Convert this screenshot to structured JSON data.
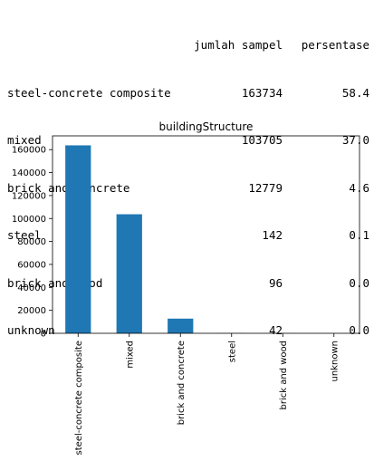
{
  "table": {
    "headers": [
      "",
      "jumlah sampel",
      "persentase"
    ],
    "rows": [
      {
        "label": "steel-concrete composite",
        "count": "163734",
        "pct": "58.4"
      },
      {
        "label": "mixed",
        "count": "103705",
        "pct": "37.0"
      },
      {
        "label": "brick and concrete",
        "count": "12779",
        "pct": "4.6"
      },
      {
        "label": "steel",
        "count": "142",
        "pct": "0.1"
      },
      {
        "label": "brick and wood",
        "count": "96",
        "pct": "0.0"
      },
      {
        "label": "unknown",
        "count": "42",
        "pct": "0.0"
      }
    ]
  },
  "chart_data": {
    "type": "bar",
    "title": "buildingStructure",
    "categories": [
      "steel-concrete composite",
      "mixed",
      "brick and concrete",
      "steel",
      "brick and wood",
      "unknown"
    ],
    "values": [
      163734,
      103705,
      12779,
      142,
      96,
      42
    ],
    "ylim": [
      0,
      172000
    ],
    "yticks": [
      0,
      20000,
      40000,
      60000,
      80000,
      100000,
      120000,
      140000,
      160000
    ],
    "xlabel": "",
    "ylabel": "",
    "grid": false,
    "bar_color": "#1f77b4"
  }
}
